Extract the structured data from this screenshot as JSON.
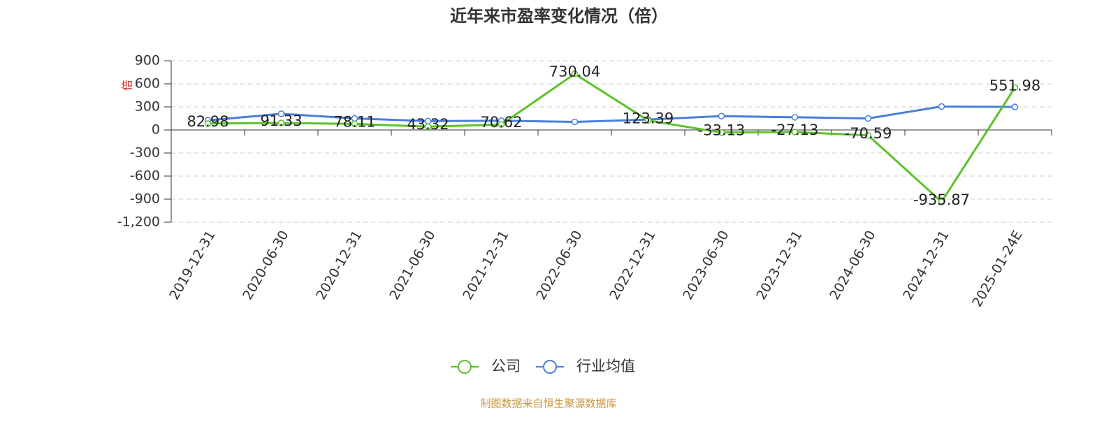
{
  "chart_data": {
    "type": "line",
    "title": "近年来市盈率变化情况（倍）",
    "y_label": "倍",
    "source": "制图数据来自恒生聚源数据库",
    "categories": [
      "2019-12-31",
      "2020-06-30",
      "2020-12-31",
      "2021-06-30",
      "2021-12-31",
      "2022-06-30",
      "2022-12-31",
      "2023-06-30",
      "2023-12-31",
      "2024-06-30",
      "2024-12-31",
      "2025-01-24E"
    ],
    "series": [
      {
        "name": "公司",
        "color": "#5cc22a",
        "values": [
          82.98,
          91.33,
          78.11,
          43.32,
          70.62,
          730.04,
          123.39,
          -33.13,
          -27.13,
          -70.59,
          -935.87,
          551.98
        ],
        "data_labels": true
      },
      {
        "name": "行业均值",
        "color": "#4a7fd8",
        "values": [
          125,
          210,
          150,
          115,
          120,
          105,
          135,
          180,
          165,
          150,
          305,
          300
        ],
        "data_labels": false
      }
    ],
    "ylim": [
      -1200,
      900
    ],
    "yticks": [
      {
        "value": -1200,
        "label": "-1,200"
      },
      -900,
      -600,
      -300,
      0,
      300,
      600,
      900
    ],
    "grid": true,
    "legend": "bottom"
  }
}
